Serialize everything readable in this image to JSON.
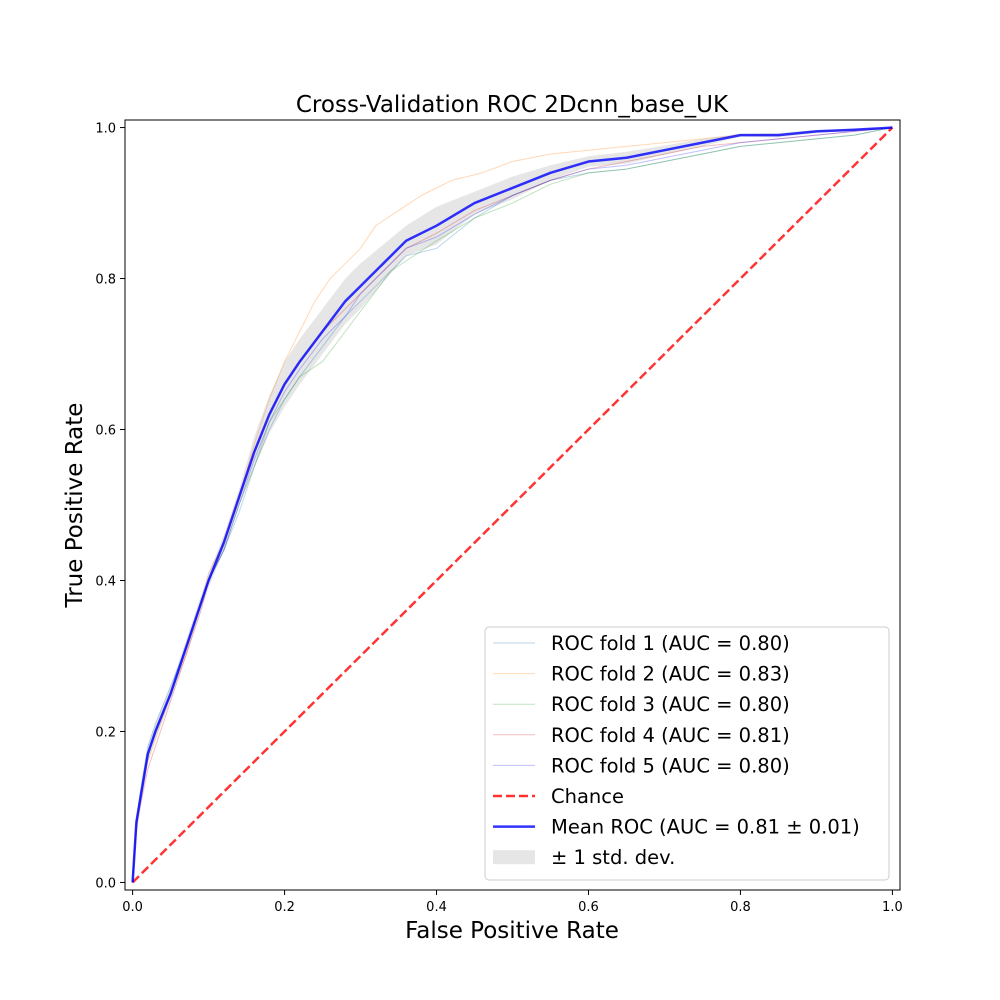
{
  "chart_data": {
    "type": "line",
    "title": "Cross-Validation ROC 2Dcnn_base_UK",
    "xlabel": "False Positive Rate",
    "ylabel": "True Positive Rate",
    "xlim": [
      -0.01,
      1.01
    ],
    "ylim": [
      -0.01,
      1.01
    ],
    "xticks": [
      0.0,
      0.2,
      0.4,
      0.6,
      0.8,
      1.0
    ],
    "xtick_labels": [
      "0.0",
      "0.2",
      "0.4",
      "0.6",
      "0.8",
      "1.0"
    ],
    "yticks": [
      0.0,
      0.2,
      0.4,
      0.6,
      0.8,
      1.0
    ],
    "ytick_labels": [
      "0.0",
      "0.2",
      "0.4",
      "0.6",
      "0.8",
      "1.0"
    ],
    "grid": false,
    "legend_position": "bottom-right",
    "series": [
      {
        "name": "ROC fold 1 (AUC = 0.80)",
        "color": "#1f77b4",
        "opacity": 0.3,
        "width": 1,
        "x": [
          0,
          0.005,
          0.01,
          0.02,
          0.03,
          0.05,
          0.07,
          0.09,
          0.1,
          0.12,
          0.14,
          0.16,
          0.18,
          0.2,
          0.22,
          0.25,
          0.28,
          0.3,
          0.33,
          0.36,
          0.4,
          0.45,
          0.5,
          0.55,
          0.6,
          0.65,
          0.7,
          0.75,
          0.8,
          0.85,
          0.9,
          0.95,
          1.0
        ],
        "y": [
          0,
          0.08,
          0.12,
          0.18,
          0.21,
          0.26,
          0.31,
          0.37,
          0.4,
          0.44,
          0.49,
          0.55,
          0.6,
          0.64,
          0.67,
          0.71,
          0.75,
          0.77,
          0.8,
          0.83,
          0.84,
          0.88,
          0.91,
          0.93,
          0.94,
          0.945,
          0.955,
          0.965,
          0.975,
          0.98,
          0.985,
          0.99,
          1.0
        ]
      },
      {
        "name": "ROC fold 2 (AUC = 0.83)",
        "color": "#ff7f0e",
        "opacity": 0.3,
        "width": 1,
        "x": [
          0,
          0.005,
          0.01,
          0.02,
          0.03,
          0.05,
          0.07,
          0.09,
          0.1,
          0.12,
          0.14,
          0.16,
          0.18,
          0.2,
          0.22,
          0.24,
          0.26,
          0.28,
          0.3,
          0.32,
          0.35,
          0.38,
          0.42,
          0.46,
          0.5,
          0.55,
          0.6,
          0.65,
          0.7,
          0.75,
          0.8,
          0.85,
          0.9,
          0.95,
          1.0
        ],
        "y": [
          0,
          0.08,
          0.11,
          0.16,
          0.19,
          0.25,
          0.3,
          0.37,
          0.41,
          0.45,
          0.51,
          0.58,
          0.64,
          0.69,
          0.73,
          0.77,
          0.8,
          0.82,
          0.84,
          0.87,
          0.89,
          0.91,
          0.93,
          0.94,
          0.955,
          0.965,
          0.97,
          0.975,
          0.98,
          0.985,
          0.99,
          0.99,
          0.995,
          0.997,
          1.0
        ]
      },
      {
        "name": "ROC fold 3 (AUC = 0.80)",
        "color": "#2ca02c",
        "opacity": 0.3,
        "width": 1,
        "x": [
          0,
          0.005,
          0.01,
          0.02,
          0.03,
          0.05,
          0.07,
          0.09,
          0.1,
          0.12,
          0.14,
          0.16,
          0.18,
          0.2,
          0.22,
          0.25,
          0.28,
          0.31,
          0.34,
          0.37,
          0.4,
          0.45,
          0.5,
          0.55,
          0.6,
          0.65,
          0.7,
          0.75,
          0.8,
          0.85,
          0.9,
          0.95,
          1.0
        ],
        "y": [
          0,
          0.07,
          0.11,
          0.17,
          0.2,
          0.25,
          0.31,
          0.37,
          0.4,
          0.44,
          0.5,
          0.55,
          0.61,
          0.64,
          0.67,
          0.69,
          0.73,
          0.77,
          0.81,
          0.83,
          0.85,
          0.88,
          0.9,
          0.925,
          0.94,
          0.945,
          0.955,
          0.965,
          0.975,
          0.98,
          0.985,
          0.99,
          1.0
        ]
      },
      {
        "name": "ROC fold 4 (AUC = 0.81)",
        "color": "#d62728",
        "opacity": 0.3,
        "width": 1,
        "x": [
          0,
          0.005,
          0.01,
          0.02,
          0.03,
          0.05,
          0.07,
          0.09,
          0.1,
          0.12,
          0.14,
          0.16,
          0.18,
          0.2,
          0.22,
          0.25,
          0.28,
          0.3,
          0.33,
          0.36,
          0.4,
          0.45,
          0.5,
          0.55,
          0.6,
          0.65,
          0.7,
          0.75,
          0.8,
          0.85,
          0.9,
          0.95,
          1.0
        ],
        "y": [
          0,
          0.07,
          0.1,
          0.15,
          0.18,
          0.24,
          0.3,
          0.36,
          0.4,
          0.45,
          0.51,
          0.57,
          0.62,
          0.66,
          0.69,
          0.73,
          0.76,
          0.78,
          0.81,
          0.84,
          0.86,
          0.89,
          0.91,
          0.93,
          0.945,
          0.955,
          0.965,
          0.975,
          0.98,
          0.985,
          0.99,
          0.995,
          1.0
        ]
      },
      {
        "name": "ROC fold 5 (AUC = 0.80)",
        "color": "#0000ff",
        "opacity": 0.25,
        "width": 1,
        "x": [
          0,
          0.005,
          0.01,
          0.02,
          0.03,
          0.05,
          0.07,
          0.09,
          0.1,
          0.12,
          0.14,
          0.16,
          0.18,
          0.2,
          0.22,
          0.25,
          0.28,
          0.3,
          0.33,
          0.36,
          0.4,
          0.45,
          0.5,
          0.55,
          0.6,
          0.65,
          0.7,
          0.75,
          0.8,
          0.85,
          0.9,
          0.95,
          1.0
        ],
        "y": [
          0,
          0.08,
          0.11,
          0.17,
          0.2,
          0.25,
          0.31,
          0.37,
          0.4,
          0.44,
          0.5,
          0.56,
          0.61,
          0.65,
          0.68,
          0.72,
          0.75,
          0.78,
          0.81,
          0.84,
          0.855,
          0.885,
          0.91,
          0.93,
          0.945,
          0.95,
          0.96,
          0.97,
          0.98,
          0.985,
          0.99,
          0.995,
          1.0
        ]
      },
      {
        "name": "Chance",
        "color": "#ff0000",
        "opacity": 0.8,
        "width": 2.5,
        "dashed": true,
        "x": [
          0,
          1
        ],
        "y": [
          0,
          1
        ]
      },
      {
        "name": "Mean ROC (AUC = 0.81 ± 0.01)",
        "color": "#0000ff",
        "opacity": 0.8,
        "width": 2.5,
        "x": [
          0,
          0.005,
          0.01,
          0.02,
          0.03,
          0.05,
          0.07,
          0.09,
          0.1,
          0.12,
          0.14,
          0.16,
          0.18,
          0.2,
          0.22,
          0.25,
          0.28,
          0.3,
          0.33,
          0.36,
          0.4,
          0.45,
          0.5,
          0.55,
          0.6,
          0.65,
          0.7,
          0.75,
          0.8,
          0.85,
          0.9,
          0.95,
          1.0
        ],
        "y": [
          0,
          0.08,
          0.11,
          0.17,
          0.2,
          0.25,
          0.31,
          0.37,
          0.4,
          0.45,
          0.51,
          0.57,
          0.62,
          0.66,
          0.69,
          0.73,
          0.77,
          0.79,
          0.82,
          0.85,
          0.87,
          0.9,
          0.92,
          0.94,
          0.955,
          0.96,
          0.97,
          0.98,
          0.99,
          0.99,
          0.995,
          0.997,
          1.0
        ]
      }
    ],
    "band": {
      "name": "± 1 std. dev.",
      "color": "#808080",
      "opacity": 0.2,
      "x": [
        0,
        0.005,
        0.01,
        0.02,
        0.03,
        0.05,
        0.07,
        0.09,
        0.1,
        0.12,
        0.14,
        0.16,
        0.18,
        0.2,
        0.22,
        0.25,
        0.28,
        0.3,
        0.33,
        0.36,
        0.4,
        0.45,
        0.5,
        0.55,
        0.6,
        0.65,
        0.7,
        0.75,
        0.8,
        0.85,
        0.9,
        0.95,
        1.0
      ],
      "upper": [
        0,
        0.085,
        0.12,
        0.18,
        0.21,
        0.26,
        0.32,
        0.38,
        0.41,
        0.46,
        0.52,
        0.59,
        0.645,
        0.69,
        0.72,
        0.76,
        0.8,
        0.82,
        0.845,
        0.87,
        0.895,
        0.915,
        0.935,
        0.95,
        0.962,
        0.968,
        0.976,
        0.985,
        0.992,
        0.993,
        0.997,
        0.998,
        1.0
      ],
      "lower": [
        0,
        0.075,
        0.1,
        0.16,
        0.19,
        0.24,
        0.3,
        0.36,
        0.39,
        0.44,
        0.5,
        0.55,
        0.595,
        0.63,
        0.66,
        0.7,
        0.74,
        0.76,
        0.795,
        0.83,
        0.845,
        0.885,
        0.905,
        0.93,
        0.948,
        0.952,
        0.964,
        0.975,
        0.988,
        0.987,
        0.993,
        0.996,
        1.0
      ]
    }
  }
}
